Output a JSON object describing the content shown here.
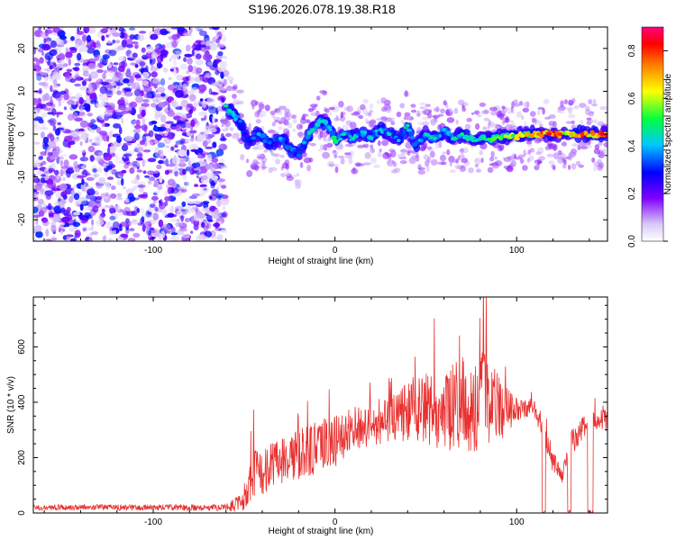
{
  "title": "S196.2026.078.19.38.R18",
  "chart_data": [
    {
      "type": "heatmap",
      "xlabel": "Height of straight line (km)",
      "ylabel": "Frequency (Hz)",
      "xlim": [
        -166,
        150
      ],
      "ylim": [
        -25,
        25
      ],
      "xticks": [
        -100,
        0,
        100
      ],
      "xtick_labels": [
        "-100",
        "0",
        "100"
      ],
      "yticks": [
        -20,
        -10,
        0,
        10,
        20
      ],
      "ytick_labels": [
        "-20",
        "-10",
        "0",
        "10",
        "20"
      ],
      "colorbar": {
        "label": "Normalized spectral amplitude",
        "range": [
          0.0,
          0.9
        ],
        "ticks": [
          0.0,
          0.2,
          0.4,
          0.6,
          0.8
        ],
        "tick_labels": [
          "0.0",
          "0.2",
          "0.4",
          "0.6",
          "0.8"
        ]
      },
      "trace": [
        {
          "x": -58,
          "f": 5.5,
          "a": 0.45
        },
        {
          "x": -52,
          "f": 3,
          "a": 0.35
        },
        {
          "x": -48,
          "f": -1.5,
          "a": 0.3
        },
        {
          "x": -42,
          "f": 0,
          "a": 0.4
        },
        {
          "x": -36,
          "f": -2,
          "a": 0.35
        },
        {
          "x": -30,
          "f": -1,
          "a": 0.4
        },
        {
          "x": -25,
          "f": -3,
          "a": 0.35
        },
        {
          "x": -20,
          "f": -5,
          "a": 0.35
        },
        {
          "x": -17,
          "f": -2,
          "a": 0.4
        },
        {
          "x": -12,
          "f": 1,
          "a": 0.45
        },
        {
          "x": -7,
          "f": 3,
          "a": 0.45
        },
        {
          "x": -3,
          "f": 1.5,
          "a": 0.4
        },
        {
          "x": 0,
          "f": -1.5,
          "a": 0.5
        },
        {
          "x": 5,
          "f": 0,
          "a": 0.45
        },
        {
          "x": 10,
          "f": -1,
          "a": 0.45
        },
        {
          "x": 15,
          "f": 0.5,
          "a": 0.4
        },
        {
          "x": 20,
          "f": -1,
          "a": 0.45
        },
        {
          "x": 25,
          "f": 1,
          "a": 0.4
        },
        {
          "x": 30,
          "f": 0,
          "a": 0.45
        },
        {
          "x": 35,
          "f": -1.5,
          "a": 0.4
        },
        {
          "x": 40,
          "f": 2,
          "a": 0.45
        },
        {
          "x": 44,
          "f": -2.5,
          "a": 0.35
        },
        {
          "x": 50,
          "f": 0,
          "a": 0.45
        },
        {
          "x": 55,
          "f": -1,
          "a": 0.45
        },
        {
          "x": 60,
          "f": 1,
          "a": 0.4
        },
        {
          "x": 65,
          "f": -1,
          "a": 0.45
        },
        {
          "x": 70,
          "f": 0,
          "a": 0.5
        },
        {
          "x": 76,
          "f": -1.5,
          "a": 0.45
        },
        {
          "x": 82,
          "f": -1,
          "a": 0.5
        },
        {
          "x": 88,
          "f": -1,
          "a": 0.55
        },
        {
          "x": 94,
          "f": -0.5,
          "a": 0.6
        },
        {
          "x": 100,
          "f": -0.5,
          "a": 0.65
        },
        {
          "x": 106,
          "f": 0,
          "a": 0.7
        },
        {
          "x": 112,
          "f": 0,
          "a": 0.75
        },
        {
          "x": 118,
          "f": 0,
          "a": 0.85
        },
        {
          "x": 124,
          "f": 0,
          "a": 0.8
        },
        {
          "x": 130,
          "f": 0,
          "a": 0.7
        },
        {
          "x": 136,
          "f": 0,
          "a": 0.8
        },
        {
          "x": 142,
          "f": 0,
          "a": 0.75
        },
        {
          "x": 147,
          "f": 0,
          "a": 0.85
        }
      ]
    },
    {
      "type": "line",
      "xlabel": "Height of straight line (km)",
      "ylabel": "SNR (10 * v/v)",
      "xlim": [
        -166,
        150
      ],
      "ylim": [
        0,
        780
      ],
      "xticks": [
        -100,
        0,
        100
      ],
      "xtick_labels": [
        "-100",
        "0",
        "100"
      ],
      "yticks": [
        0,
        200,
        400,
        600
      ],
      "ytick_labels": [
        "0",
        "200",
        "400",
        "600"
      ],
      "color": "#e8302f",
      "envelope": [
        {
          "x": -166,
          "base": 20,
          "spread": 10
        },
        {
          "x": -60,
          "base": 20,
          "spread": 12
        },
        {
          "x": -50,
          "base": 40,
          "spread": 40
        },
        {
          "x": -45,
          "base": 120,
          "spread": 150
        },
        {
          "x": -40,
          "base": 140,
          "spread": 130
        },
        {
          "x": -30,
          "base": 170,
          "spread": 140
        },
        {
          "x": -20,
          "base": 200,
          "spread": 140
        },
        {
          "x": -10,
          "base": 230,
          "spread": 150
        },
        {
          "x": 0,
          "base": 250,
          "spread": 150
        },
        {
          "x": 10,
          "base": 290,
          "spread": 130
        },
        {
          "x": 20,
          "base": 320,
          "spread": 130
        },
        {
          "x": 30,
          "base": 330,
          "spread": 130
        },
        {
          "x": 40,
          "base": 360,
          "spread": 180
        },
        {
          "x": 50,
          "base": 360,
          "spread": 200
        },
        {
          "x": 60,
          "base": 360,
          "spread": 230
        },
        {
          "x": 70,
          "base": 380,
          "spread": 260
        },
        {
          "x": 80,
          "base": 380,
          "spread": 300
        },
        {
          "x": 90,
          "base": 360,
          "spread": 200
        },
        {
          "x": 100,
          "base": 370,
          "spread": 60
        },
        {
          "x": 110,
          "base": 370,
          "spread": 50
        },
        {
          "x": 115,
          "base": 300,
          "spread": 80
        },
        {
          "x": 120,
          "base": 180,
          "spread": 60
        },
        {
          "x": 125,
          "base": 130,
          "spread": 40
        },
        {
          "x": 130,
          "base": 250,
          "spread": 80
        },
        {
          "x": 140,
          "base": 330,
          "spread": 60
        },
        {
          "x": 150,
          "base": 330,
          "spread": 60
        }
      ],
      "dropouts": [
        {
          "x0": 114,
          "x1": 116
        },
        {
          "x0": 128,
          "x1": 130
        },
        {
          "x0": 139,
          "x1": 142
        }
      ]
    }
  ]
}
